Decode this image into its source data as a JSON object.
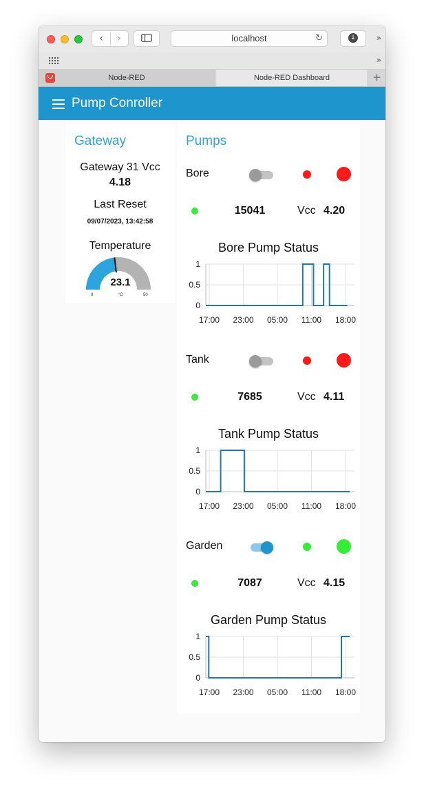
{
  "browser": {
    "url": "localhost",
    "tabs": [
      {
        "label": "Node-RED"
      },
      {
        "label": "Node-RED Dashboard"
      }
    ],
    "new_tab": "+",
    "overflow": "»"
  },
  "header": {
    "title": "Pump Conroller"
  },
  "gateway": {
    "title": "Gateway",
    "vcc_label": "Gateway 31 Vcc",
    "vcc_value": "4.18",
    "reset_label": "Last Reset",
    "reset_value": "09/07/2023, 13:42:58",
    "temp_label": "Temperature",
    "gauge": {
      "value": 23.1,
      "value_text": "23.1",
      "min": 0,
      "max": 50,
      "min_text": "0",
      "max_text": "50",
      "unit": "°C",
      "fill_color": "#2ca5dc",
      "track_color": "#b3b3b3"
    }
  },
  "pumps": {
    "title": "Pumps",
    "vcc_label": "Vcc",
    "items": [
      {
        "name": "Bore",
        "switch_on": false,
        "led_small_color": "#ff1a1a",
        "led_big_color": "#ff1a1a",
        "status_led_color": "#33ee33",
        "count": "15041",
        "vcc": "4.20",
        "chart_title": "Bore Pump Status"
      },
      {
        "name": "Tank",
        "switch_on": false,
        "led_small_color": "#ff1a1a",
        "led_big_color": "#ff1a1a",
        "status_led_color": "#33ee33",
        "count": "7685",
        "vcc": "4.11",
        "chart_title": "Tank Pump Status"
      },
      {
        "name": "Garden",
        "switch_on": true,
        "led_small_color": "#33ee33",
        "led_big_color": "#33ee33",
        "status_led_color": "#33ee33",
        "count": "7087",
        "vcc": "4.15",
        "chart_title": "Garden Pump Status"
      }
    ]
  },
  "chart_data": [
    {
      "type": "line",
      "title": "Bore Pump Status",
      "xlabel": "",
      "ylabel": "",
      "x_ticks": [
        "17:00",
        "23:00",
        "05:00",
        "11:00",
        "18:00"
      ],
      "y_ticks": [
        "1",
        "0.5",
        "0"
      ],
      "x_range": [
        0,
        25
      ],
      "ylim": [
        0,
        1
      ],
      "grid": true,
      "series_color": "#1f77b4",
      "x": [
        0,
        16.3,
        16.3,
        18.1,
        18.1,
        19.8,
        19.8,
        20.8,
        20.8,
        23.8
      ],
      "y": [
        0,
        0,
        1,
        1,
        0,
        0,
        1,
        1,
        0,
        0
      ]
    },
    {
      "type": "line",
      "title": "Tank Pump Status",
      "xlabel": "",
      "ylabel": "",
      "x_ticks": [
        "17:00",
        "23:00",
        "05:00",
        "11:00",
        "18:00"
      ],
      "y_ticks": [
        "1",
        "0.5",
        "0"
      ],
      "x_range": [
        0,
        25
      ],
      "ylim": [
        0,
        1
      ],
      "grid": true,
      "series_color": "#1f77b4",
      "x": [
        0,
        2.5,
        2.5,
        6.5,
        6.5,
        24.2
      ],
      "y": [
        0,
        0,
        1,
        1,
        0,
        0
      ]
    },
    {
      "type": "line",
      "title": "Garden Pump Status",
      "xlabel": "",
      "ylabel": "",
      "x_ticks": [
        "17:00",
        "23:00",
        "05:00",
        "11:00",
        "18:00"
      ],
      "y_ticks": [
        "1",
        "0.5",
        "0"
      ],
      "x_range": [
        0,
        25
      ],
      "ylim": [
        0,
        1
      ],
      "grid": true,
      "series_color": "#1f77b4",
      "x": [
        0,
        0.5,
        0.5,
        22.8,
        22.8,
        24.2
      ],
      "y": [
        1,
        1,
        0,
        0,
        1,
        1
      ]
    }
  ]
}
